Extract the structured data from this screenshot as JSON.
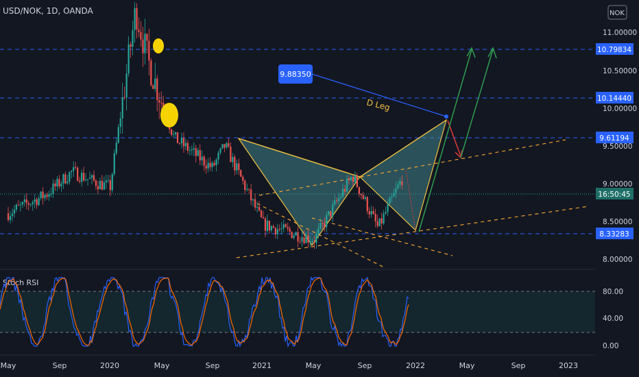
{
  "header": {
    "title": "USD/NOK, 1D, OANDA",
    "currency_button": "NOK"
  },
  "colors": {
    "bg": "#131722",
    "up": "#26a69a",
    "down": "#ef5350",
    "hline": "#2962ff",
    "pattern": "#f0c140",
    "pattern_fill": "#4a9aa0",
    "green_arrow": "#2e9e4f",
    "red_arrow": "#e53935",
    "stoch_k": "#2962ff",
    "stoch_d": "#ff6d00"
  },
  "price_axis": {
    "ticks": [
      "11.00000",
      "10.50000",
      "10.00000",
      "9.50000",
      "9.00000",
      "8.50000",
      "8.00000"
    ]
  },
  "price_labels": [
    {
      "value": "10.79834",
      "kind": "level"
    },
    {
      "value": "10.14440",
      "kind": "level"
    },
    {
      "value": "9.61194",
      "kind": "level"
    },
    {
      "value": "16:50:45",
      "kind": "time"
    },
    {
      "value": "8.33283",
      "kind": "level"
    }
  ],
  "annotations": {
    "callout": "9.88350",
    "d_leg": "D Leg"
  },
  "stoch": {
    "title": "Stoch RSI",
    "ticks": [
      "80.00",
      "40.00",
      "0.00"
    ]
  },
  "time_axis": {
    "labels": [
      "May",
      "Sep",
      "2020",
      "May",
      "Sep",
      "2021",
      "May",
      "Sep",
      "2022",
      "May",
      "Sep",
      "2023"
    ]
  },
  "chart_data": {
    "type": "candlestick",
    "title": "USD/NOK, 1D, OANDA",
    "series": [
      {
        "name": "USD/NOK",
        "points": [
          [
            "2019-05",
            8.6
          ],
          [
            "2019-08",
            8.85
          ],
          [
            "2019-10",
            9.15
          ],
          [
            "2019-12",
            9.0
          ],
          [
            "2020-01",
            8.95
          ],
          [
            "2020-03",
            11.3
          ],
          [
            "2020-04",
            10.6
          ],
          [
            "2020-06",
            9.6
          ],
          [
            "2020-09",
            9.2
          ],
          [
            "2020-10",
            9.5
          ],
          [
            "2021-01",
            8.45
          ],
          [
            "2021-05",
            8.25
          ],
          [
            "2021-08",
            9.1
          ],
          [
            "2021-10",
            8.4
          ],
          [
            "2021-12",
            9.1
          ]
        ]
      }
    ],
    "horizontal_levels": [
      10.79834,
      10.1444,
      9.61194,
      8.33283
    ],
    "harmonic_pattern": [
      [
        "2020-10",
        9.61
      ],
      [
        "2021-05",
        8.25
      ],
      [
        "2021-08",
        9.05
      ],
      [
        "2021-12",
        8.35
      ],
      [
        "2022-03",
        9.88
      ]
    ],
    "projection_target": 9.8835,
    "y_range": [
      7.85,
      11.4
    ],
    "x_range": [
      "2019-05",
      "2023-03"
    ],
    "stoch_rsi": {
      "y_range": [
        0,
        100
      ],
      "bands": [
        20,
        80
      ]
    }
  }
}
